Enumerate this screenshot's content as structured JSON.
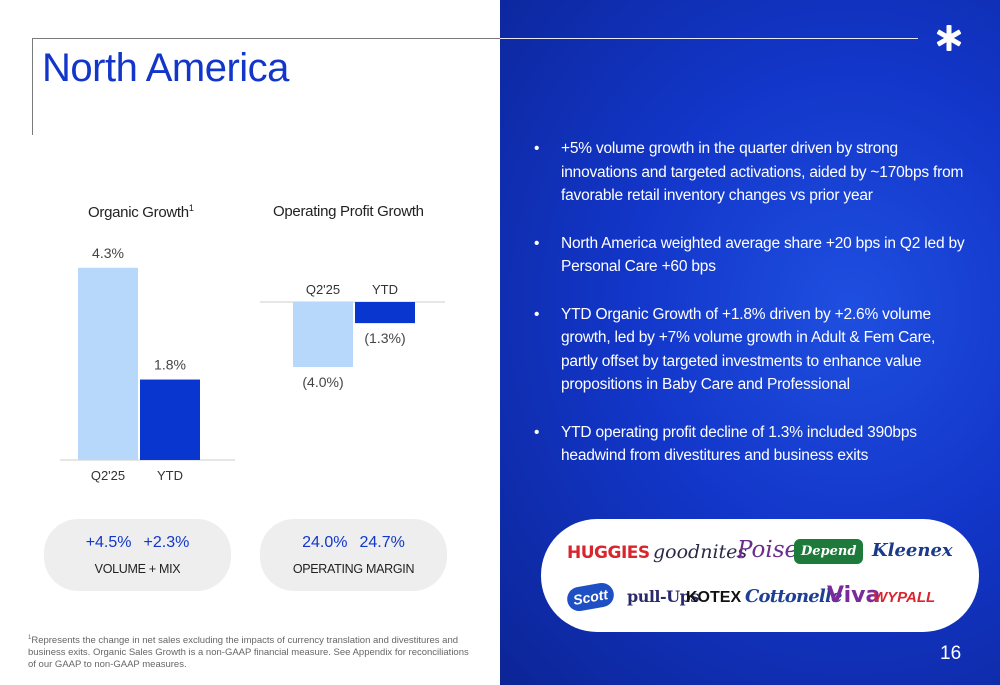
{
  "slide": {
    "title": "North America",
    "page_number": "16"
  },
  "organic_chart": {
    "title": "Organic Growth",
    "title_sup": "1",
    "labels": [
      "4.3%",
      "1.8%"
    ],
    "categories": [
      "Q2'25",
      "YTD"
    ]
  },
  "op_chart": {
    "title": "Operating Profit Growth",
    "labels": [
      "(4.0%)",
      "(1.3%)"
    ],
    "categories": [
      "Q2'25",
      "YTD"
    ]
  },
  "chart_data": [
    {
      "type": "bar",
      "title": "Organic Growth",
      "categories": [
        "Q2'25",
        "YTD"
      ],
      "values": [
        4.3,
        1.8
      ],
      "unit": "%",
      "colors": [
        "#b8d8fb",
        "#0a36d0"
      ]
    },
    {
      "type": "bar",
      "title": "Operating Profit Growth",
      "categories": [
        "Q2'25",
        "YTD"
      ],
      "values": [
        -4.0,
        -1.3
      ],
      "unit": "%",
      "colors": [
        "#b8d8fb",
        "#0a36d0"
      ]
    }
  ],
  "volume_mix": {
    "q2": "+4.5%",
    "ytd": "+2.3%",
    "label": "VOLUME + MIX"
  },
  "op_margin": {
    "q2": "24.0%",
    "ytd": "24.7%",
    "label": "OPERATING MARGIN"
  },
  "footnote": {
    "sup": "1",
    "text": "Represents the change in net sales excluding the impacts of currency translation and divestitures and business exits. Organic Sales Growth is a non-GAAP financial measure. See Appendix for reconciliations of our GAAP to non-GAAP measures."
  },
  "bullets": [
    "+5% volume growth in the quarter driven by strong innovations and targeted activations, aided by ~170bps from favorable retail inventory changes vs prior year",
    "North America weighted average share +20 bps in Q2 led by Personal Care +60 bps",
    "YTD Organic Growth of +1.8% driven by +2.6% volume growth, led by +7% volume growth in Adult & Fem Care, partly offset by targeted investments to enhance value propositions in Baby Care and Professional",
    "YTD operating profit decline of 1.3% included 390bps headwind from divestitures and business exits"
  ],
  "bullet_char": "•",
  "brands": {
    "huggies": "HUGGIES",
    "goodnites": "goodnites",
    "poise": "Poise",
    "depend": "Depend",
    "kleenex": "Kleenex",
    "scott": "Scott",
    "pullups": "pull-Ups",
    "kotex": "KOTEX",
    "cottonelle": "Cottonelle",
    "viva": "Viva",
    "wypall": "WYPALL"
  },
  "colors": {
    "accent_blue": "#1236c9",
    "bar_light": "#b8d8fb",
    "bar_dark": "#0a36d0"
  }
}
